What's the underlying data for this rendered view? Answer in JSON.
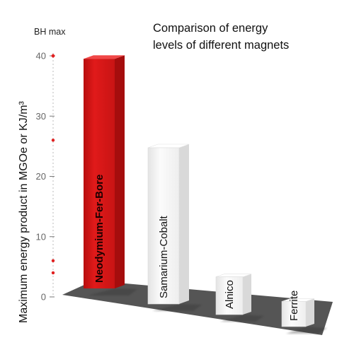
{
  "chart_data": {
    "type": "bar",
    "title": [
      "Comparison of energy",
      "levels of different magnets"
    ],
    "ylabel": "Maximum energy product in MGOe or KJ/m³",
    "ylabel_top": "BH max",
    "categories": [
      "Neodymium-Fer-Bore",
      "Samarium-Cobalt",
      "Alnico",
      "Ferrite"
    ],
    "values": [
      40,
      26,
      6,
      4
    ],
    "yticks": [
      "0",
      "10",
      "20",
      "30",
      "40"
    ],
    "ylim": [
      0,
      40
    ],
    "grid": false,
    "colors": {
      "highlight_front": "#e01a1a",
      "highlight_side": "#a50d0d",
      "highlight_top": "#f04747",
      "bar_front": "#f7f7f7",
      "bar_side": "#d9d9d9",
      "bar_top": "#ffffff",
      "floor": "#555555",
      "axis_marker": "#e02020"
    }
  }
}
